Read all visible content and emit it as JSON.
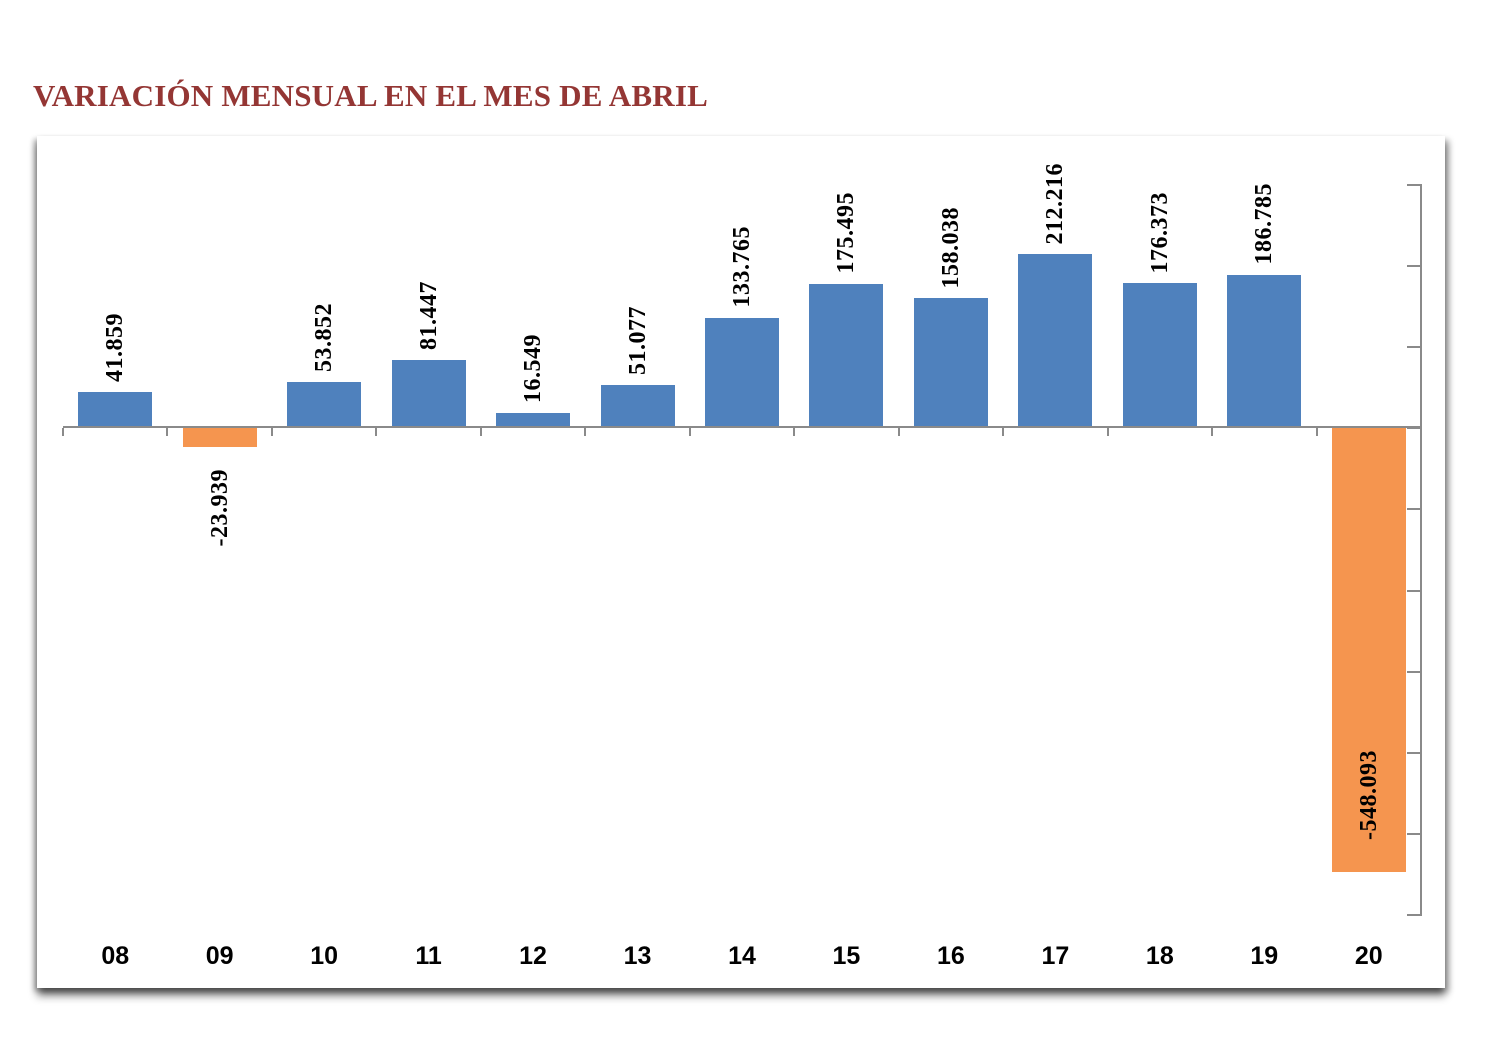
{
  "page": {
    "title": "VARIACIÓN MENSUAL EN EL MES DE ABRIL",
    "title_color": "#943634"
  },
  "chart_data": {
    "type": "bar",
    "title": "VARIACIÓN MENSUAL EN EL MES DE ABRIL",
    "categories": [
      "08",
      "09",
      "10",
      "11",
      "12",
      "13",
      "14",
      "15",
      "16",
      "17",
      "18",
      "19",
      "20"
    ],
    "values": [
      41859,
      -23939,
      53852,
      81447,
      16549,
      51077,
      133765,
      175495,
      158038,
      212216,
      176373,
      186785,
      -548093
    ],
    "labels": [
      "41.859",
      "-23.939",
      "53.852",
      "81.447",
      "16.549",
      "51.077",
      "133.765",
      "175.495",
      "158.038",
      "212.216",
      "176.373",
      "186.785",
      "-548.093"
    ],
    "label_positions": [
      "above",
      "below",
      "above",
      "above",
      "above",
      "above",
      "above",
      "above",
      "above",
      "above",
      "above",
      "above",
      "inside-end"
    ],
    "label_rotation_deg": 90,
    "colors": {
      "positive": "#4F81BD",
      "negative": "#F5954F"
    },
    "axis_color": "#8A8A8A",
    "ylim": [
      -600000,
      300000
    ],
    "major_unit": 100000,
    "value_axis_side": "right",
    "value_axis_labels_visible": false,
    "grid": false,
    "legend": "none",
    "xlabel": "",
    "ylabel": ""
  }
}
